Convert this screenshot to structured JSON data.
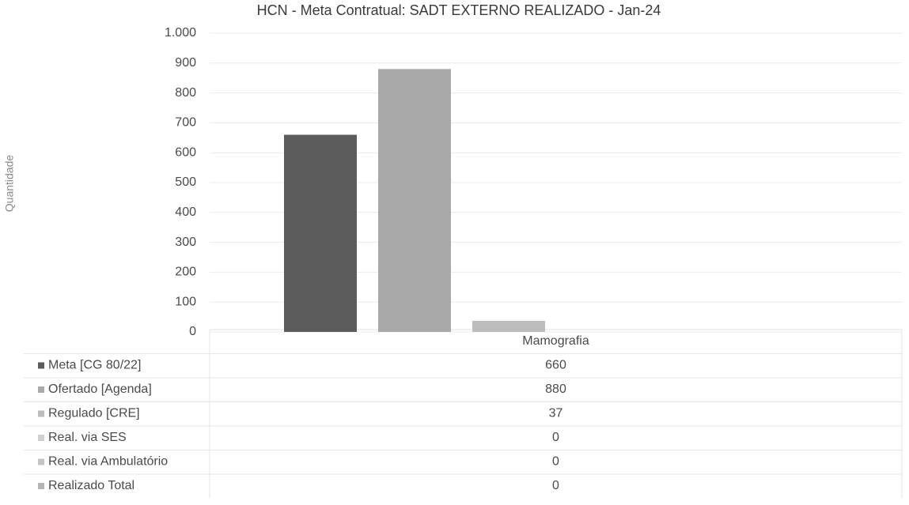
{
  "chart_data": {
    "type": "bar",
    "title": "HCN - Meta Contratual: SADT EXTERNO REALIZADO - Jan-24",
    "y_label": "Quantidade",
    "categories": [
      "Mamografia"
    ],
    "series": [
      {
        "name": "Meta [CG 80/22]",
        "color": "#5c5c5c",
        "values": [
          660
        ]
      },
      {
        "name": "Ofertado [Agenda]",
        "color": "#a9a9a9",
        "values": [
          880
        ]
      },
      {
        "name": "Regulado [CRE]",
        "color": "#bdbdbd",
        "values": [
          37
        ]
      },
      {
        "name": "Real. via SES",
        "color": "#cfcfcf",
        "values": [
          0
        ]
      },
      {
        "name": "Real. via Ambulatório",
        "color": "#c4c4c4",
        "values": [
          0
        ]
      },
      {
        "name": "Realizado Total",
        "color": "#b5b5b5",
        "values": [
          0
        ]
      }
    ],
    "ylim": [
      0,
      1000
    ],
    "yticks": [
      0,
      100,
      200,
      300,
      400,
      500,
      600,
      700,
      800,
      900,
      {
        "value": 1000,
        "label": "1.000"
      }
    ],
    "grid": true,
    "data_table": true
  }
}
